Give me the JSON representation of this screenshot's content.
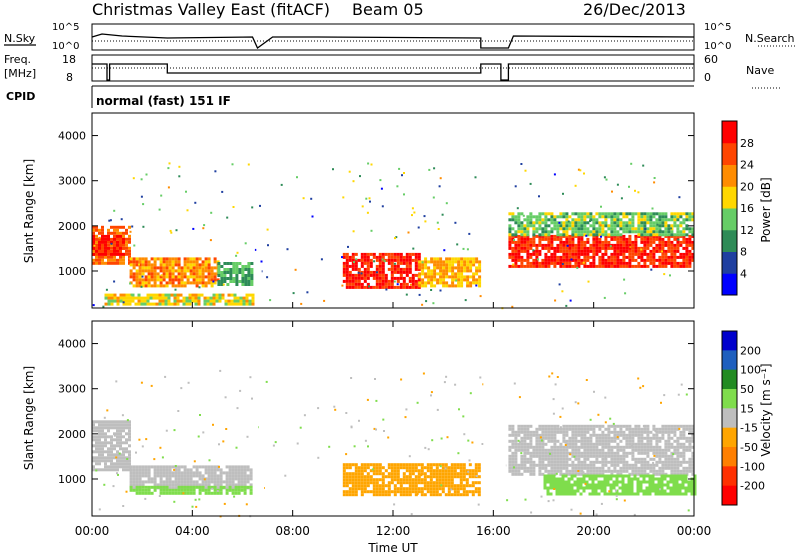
{
  "header": {
    "title": "Christmas Valley East (fitACF)",
    "beam": "Beam 05",
    "date": "26/Dec/2013"
  },
  "top_panels": {
    "nsky_label": "N.Sky",
    "nsky_ticks": [
      "10^5",
      "10^0"
    ],
    "nsearch_label": "N.Search",
    "nsearch_ticks": [
      "10^5",
      "10^0"
    ],
    "freq_label": "Freq.",
    "freq_unit": "[MHz]",
    "freq_ticks": [
      "18",
      "8"
    ],
    "nave_label": "Nave",
    "nave_ticks": [
      "60",
      "0"
    ],
    "cpid_label": "CPID",
    "cpid_value": "normal (fast) 151 IF"
  },
  "colors": {
    "power": [
      "#0000ff",
      "#1f3fa0",
      "#2e8b57",
      "#66cd66",
      "#ffd700",
      "#ff8c00",
      "#ff4500",
      "#ff0000"
    ],
    "velocity": [
      "#0000cc",
      "#1e5fbe",
      "#228b22",
      "#7fdd4c",
      "#bebebe",
      "#ffa500",
      "#ff7f00",
      "#ff3000",
      "#ff0000"
    ]
  },
  "chart_data": [
    {
      "type": "heatmap",
      "parameter": "Power",
      "ylabel": "Slant Range [km]",
      "ylim": [
        180,
        4500
      ],
      "yticks": [
        "1000",
        "2000",
        "3000",
        "4000"
      ],
      "colorbar_label": "Power [dB]",
      "colorbar_ticks": [
        "4",
        "8",
        "12",
        "16",
        "20",
        "24",
        "28"
      ],
      "colorbar_range": [
        0,
        32
      ],
      "regions": [
        {
          "t0": 0.0,
          "t1": 1.5,
          "r0": 1200,
          "r1": 2000,
          "value": 24
        },
        {
          "t0": 0.0,
          "t1": 1.2,
          "r0": 1400,
          "r1": 1800,
          "value": 29
        },
        {
          "t0": 1.5,
          "t1": 5.0,
          "r0": 700,
          "r1": 1300,
          "value": 22
        },
        {
          "t0": 5.0,
          "t1": 6.4,
          "r0": 700,
          "r1": 1200,
          "value": 12
        },
        {
          "t0": 10.0,
          "t1": 13.0,
          "r0": 650,
          "r1": 1400,
          "value": 29
        },
        {
          "t0": 13.0,
          "t1": 15.5,
          "r0": 650,
          "r1": 1300,
          "value": 20
        },
        {
          "t0": 16.6,
          "t1": 24.0,
          "r0": 1100,
          "r1": 1800,
          "value": 28
        },
        {
          "t0": 16.6,
          "t1": 24.0,
          "r0": 1800,
          "r1": 2300,
          "value": 14
        },
        {
          "t0": 0.5,
          "t1": 6.4,
          "r0": 250,
          "r1": 500,
          "value": 18
        }
      ]
    },
    {
      "type": "heatmap",
      "parameter": "Velocity",
      "ylabel": "Slant Range [km]",
      "ylim": [
        180,
        4500
      ],
      "yticks": [
        "1000",
        "2000",
        "3000",
        "4000"
      ],
      "colorbar_label": "Velocity [m s⁻¹]",
      "colorbar_ticks": [
        "200",
        "100",
        "50",
        "15",
        "-15",
        "-50",
        "-100",
        "-200"
      ],
      "regions": [
        {
          "t0": 0.0,
          "t1": 1.5,
          "r0": 1200,
          "r1": 2300,
          "value": 0
        },
        {
          "t0": 1.5,
          "t1": 6.4,
          "r0": 800,
          "r1": 1300,
          "value": 0
        },
        {
          "t0": 1.5,
          "t1": 6.4,
          "r0": 700,
          "r1": 850,
          "value": 40
        },
        {
          "t0": 10.0,
          "t1": 15.5,
          "r0": 650,
          "r1": 1350,
          "value": -40
        },
        {
          "t0": 16.6,
          "t1": 24.0,
          "r0": 1100,
          "r1": 2200,
          "value": 0
        },
        {
          "t0": 18.0,
          "t1": 24.0,
          "r0": 650,
          "r1": 1100,
          "value": 30
        }
      ]
    }
  ],
  "x_axis": {
    "label": "Time UT",
    "range": [
      0,
      24
    ],
    "ticks": [
      "00:00",
      "04:00",
      "08:00",
      "12:00",
      "16:00",
      "20:00",
      "00:00"
    ]
  }
}
